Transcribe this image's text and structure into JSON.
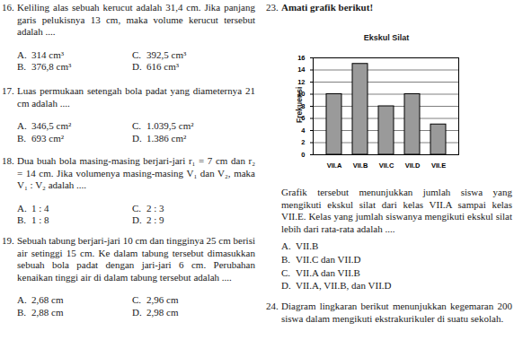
{
  "document": {
    "left_column": [
      {
        "number": "16.",
        "text": "Keliling alas sebuah kerucut adalah 31,4 cm. Jika panjang garis pelukisnya 13 cm, maka volume kerucut tersebut adalah ....",
        "options": [
          {
            "label": "A.",
            "text": "314 cm³"
          },
          {
            "label": "B.",
            "text": "376,8 cm³"
          },
          {
            "label": "C.",
            "text": "392,5 cm³"
          },
          {
            "label": "D.",
            "text": "616 cm³"
          }
        ]
      },
      {
        "number": "17.",
        "text": "Luas permukaan setengah bola padat yang diameternya 21 cm adalah ....",
        "options": [
          {
            "label": "A.",
            "text": "346,5 cm²"
          },
          {
            "label": "B.",
            "text": "693 cm²"
          },
          {
            "label": "C.",
            "text": "1.039,5 cm²"
          },
          {
            "label": "D.",
            "text": "1.386 cm²"
          }
        ]
      },
      {
        "number": "18.",
        "text": "Dua buah bola masing-masing berjari-jari r₁ = 7 cm dan r₂ = 14 cm. Jika volumenya masing-masing V₁ dan V₂, maka V₁ : V₂ adalah ....",
        "options": [
          {
            "label": "A.",
            "text": "1 : 4"
          },
          {
            "label": "B.",
            "text": "1 : 8"
          },
          {
            "label": "C.",
            "text": "2 : 3"
          },
          {
            "label": "D.",
            "text": "2 : 9"
          }
        ]
      },
      {
        "number": "19.",
        "text": "Sebuah tabung berjari-jari 10 cm dan tingginya 25 cm berisi air setinggi 15 cm. Ke dalam tabung tersebut dimasukkan sebuah bola padat dengan jari-jari 6 cm. Perubahan kenaikan tinggi air di dalam tabung tersebut adalah ....",
        "options": [
          {
            "label": "A.",
            "text": "2,68 cm"
          },
          {
            "label": "B.",
            "text": "2,88 cm"
          },
          {
            "label": "C.",
            "text": "2,96 cm"
          },
          {
            "label": "D.",
            "text": "2,98 cm"
          }
        ]
      }
    ],
    "right_column": [
      {
        "number": "23.",
        "intro": "Amati grafik berikut!",
        "text": "Grafik tersebut menunjukkan jumlah siswa yang mengikuti ekskul silat dari kelas VII.A sampai kelas VII.E. Kelas yang jumlah siswanya mengikuti ekskul silat lebih dari rata-rata adalah ....",
        "options": [
          {
            "label": "A.",
            "text": "VII.B"
          },
          {
            "label": "B.",
            "text": "VII.C dan VII.D"
          },
          {
            "label": "C.",
            "text": "VII.A dan VII.B"
          },
          {
            "label": "D.",
            "text": "VII.A, VII.B, dan VII.D"
          }
        ]
      },
      {
        "number": "24.",
        "text": "Diagram lingkaran berikut menunjukkan kegemaran 200 siswa dalam mengikuti ekstrakurikuler di suatu sekolah."
      }
    ]
  },
  "chart_data": {
    "type": "bar",
    "title": "Ekskul Silat",
    "y_label": "Frekuensi",
    "categories": [
      "VII.A",
      "VII.B",
      "VII.C",
      "VII.D",
      "VII.E"
    ],
    "values": [
      10,
      15,
      8,
      10,
      5
    ],
    "color": "#9a9a9a",
    "ylim": [
      0,
      16
    ],
    "yticks": [
      0,
      2,
      4,
      6,
      8,
      10,
      12,
      14,
      16
    ],
    "grid": true
  }
}
